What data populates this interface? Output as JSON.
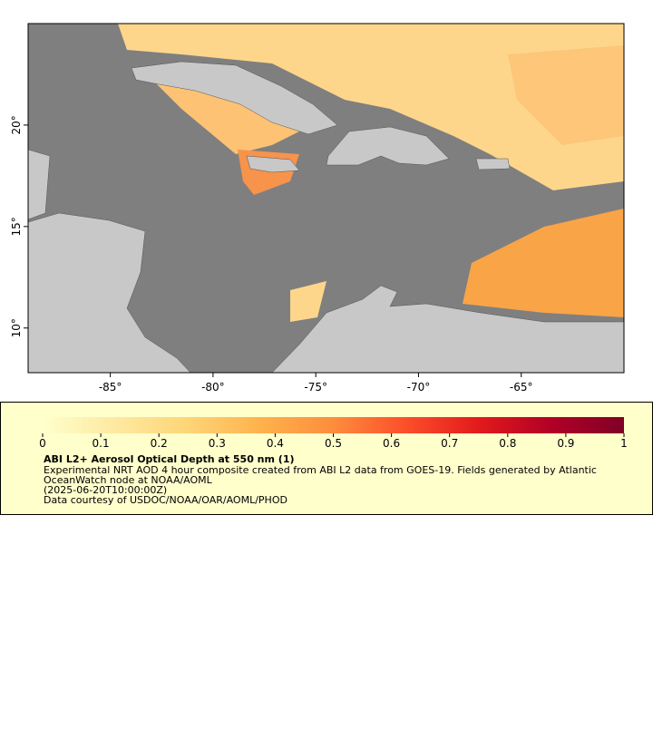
{
  "map": {
    "xlim": [
      -89,
      -60
    ],
    "ylim": [
      7.8,
      25
    ],
    "xticks": [
      {
        "value": -85,
        "label": "-85°"
      },
      {
        "value": -80,
        "label": "-80°"
      },
      {
        "value": -75,
        "label": "-75°"
      },
      {
        "value": -70,
        "label": "-70°"
      },
      {
        "value": -65,
        "label": "-65°"
      }
    ],
    "yticks": [
      {
        "value": 10,
        "label": "10°"
      },
      {
        "value": 15,
        "label": "15°"
      },
      {
        "value": 20,
        "label": "20°"
      }
    ]
  },
  "legend": {
    "colorbar": {
      "range": [
        0,
        1
      ],
      "ticks": [
        0,
        0.1,
        0.2,
        0.3,
        0.4,
        0.5,
        0.6,
        0.7,
        0.8,
        0.9,
        1
      ],
      "colors": [
        "#ffffcc",
        "#fee9a0",
        "#fed577",
        "#feb24c",
        "#fd8d3c",
        "#fc4e2a",
        "#e31a1c",
        "#b10026",
        "#800026"
      ]
    },
    "title": "ABI L2+ Aerosol Optical Depth at 550 nm (1)",
    "lines": [
      "Experimental NRT AOD 4 hour composite created from ABI L2 data from GOES-19. Fields generated by Atlantic",
      "OceanWatch node at NOAA/AOML",
      "(2025-06-20T10:00:00Z)",
      "Data courtesy of USDOC/NOAA/OAR/AOML/PHOD"
    ]
  }
}
